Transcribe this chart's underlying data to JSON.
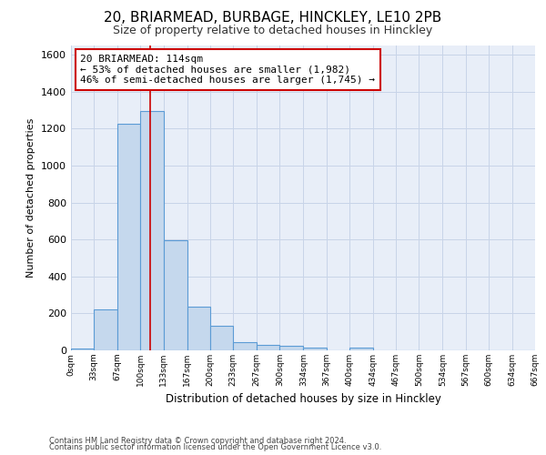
{
  "title": "20, BRIARMEAD, BURBAGE, HINCKLEY, LE10 2PB",
  "subtitle": "Size of property relative to detached houses in Hinckley",
  "xlabel": "Distribution of detached houses by size in Hinckley",
  "ylabel": "Number of detached properties",
  "footer_line1": "Contains HM Land Registry data © Crown copyright and database right 2024.",
  "footer_line2": "Contains public sector information licensed under the Open Government Licence v3.0.",
  "bin_edges": [
    0,
    33,
    67,
    100,
    133,
    167,
    200,
    233,
    267,
    300,
    334,
    367,
    400,
    434,
    467,
    500,
    534,
    567,
    600,
    634,
    667
  ],
  "bar_heights": [
    10,
    220,
    1225,
    1295,
    595,
    235,
    135,
    45,
    30,
    25,
    15,
    0,
    15,
    0,
    0,
    0,
    0,
    0,
    0,
    0
  ],
  "bar_color": "#c5d8ed",
  "bar_edge_color": "#5b9bd5",
  "property_sqm": 114,
  "vline_color": "#cc0000",
  "annotation_line1": "20 BRIARMEAD: 114sqm",
  "annotation_line2": "← 53% of detached houses are smaller (1,982)",
  "annotation_line3": "46% of semi-detached houses are larger (1,745) →",
  "annotation_box_color": "#cc0000",
  "ylim": [
    0,
    1650
  ],
  "yticks": [
    0,
    200,
    400,
    600,
    800,
    1000,
    1200,
    1400,
    1600
  ],
  "grid_color": "#c8d4e8",
  "background_color": "#e8eef8",
  "title_fontsize": 11,
  "subtitle_fontsize": 9
}
